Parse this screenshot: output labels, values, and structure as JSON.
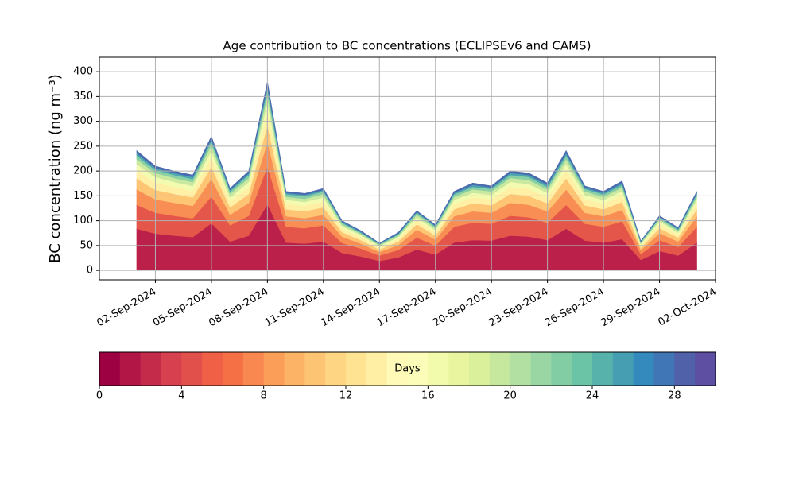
{
  "chart_data": {
    "type": "stacked_area",
    "title": "Age contribution to BC concentrations (ECLIPSEv6 and CAMS)",
    "y_label": "BC concentration (ng m⁻³)",
    "x": [
      "2024-09-01",
      "2024-09-02",
      "2024-09-03",
      "2024-09-04",
      "2024-09-05",
      "2024-09-06",
      "2024-09-07",
      "2024-09-08",
      "2024-09-09",
      "2024-09-10",
      "2024-09-11",
      "2024-09-12",
      "2024-09-13",
      "2024-09-14",
      "2024-09-15",
      "2024-09-16",
      "2024-09-17",
      "2024-09-18",
      "2024-09-19",
      "2024-09-20",
      "2024-09-21",
      "2024-09-22",
      "2024-09-23",
      "2024-09-24",
      "2024-09-25",
      "2024-09-26",
      "2024-09-27",
      "2024-09-28",
      "2024-09-29",
      "2024-09-30",
      "2024-10-01"
    ],
    "series": [
      {
        "color": "#ba2049",
        "values": [
          84,
          74,
          70,
          67,
          95,
          58,
          70,
          133,
          56,
          54,
          58,
          35,
          28,
          19,
          26,
          42,
          32,
          56,
          61,
          60,
          70,
          68,
          61,
          84,
          60,
          56,
          63,
          21,
          39,
          30,
          56
        ]
      },
      {
        "color": "#e4564a",
        "values": [
          48,
          42,
          40,
          38,
          54,
          33,
          40,
          76,
          32,
          31,
          33,
          20,
          16,
          11,
          15,
          24,
          18,
          32,
          35,
          34,
          40,
          39,
          35,
          48,
          34,
          32,
          36,
          12,
          22,
          17,
          32
        ]
      },
      {
        "color": "#f88e53",
        "values": [
          31,
          27,
          26,
          25,
          35,
          21,
          26,
          49,
          21,
          20,
          21,
          13,
          10,
          7,
          10,
          16,
          12,
          21,
          23,
          22,
          26,
          25,
          23,
          31,
          22,
          21,
          23,
          8,
          14,
          11,
          21
        ]
      },
      {
        "color": "#fdc574",
        "values": [
          22,
          19,
          18,
          17,
          24,
          15,
          18,
          34,
          14,
          14,
          15,
          9,
          7,
          5,
          7,
          11,
          8,
          14,
          16,
          15,
          18,
          18,
          16,
          22,
          15,
          14,
          16,
          5,
          10,
          8,
          14
        ]
      },
      {
        "color": "#fff0a5",
        "values": [
          17,
          15,
          14,
          13,
          19,
          12,
          14,
          27,
          11,
          11,
          12,
          7,
          6,
          4,
          5,
          8,
          6,
          11,
          12,
          12,
          14,
          14,
          12,
          17,
          12,
          11,
          13,
          4,
          8,
          6,
          11
        ]
      },
      {
        "color": "#f3fbb0",
        "values": [
          12,
          11,
          10,
          10,
          14,
          8,
          10,
          19,
          8,
          8,
          8,
          5,
          4,
          3,
          4,
          6,
          5,
          8,
          9,
          9,
          10,
          10,
          9,
          12,
          9,
          8,
          9,
          3,
          6,
          4,
          8
        ]
      },
      {
        "color": "#c9e9a0",
        "values": [
          10,
          8,
          8,
          8,
          11,
          7,
          8,
          15,
          6,
          6,
          7,
          4,
          3,
          2,
          3,
          5,
          4,
          6,
          7,
          7,
          8,
          8,
          7,
          10,
          7,
          6,
          7,
          2,
          4,
          3,
          6
        ]
      },
      {
        "color": "#89d0a4",
        "values": [
          7,
          6,
          6,
          6,
          8,
          5,
          6,
          11,
          5,
          5,
          5,
          3,
          2,
          2,
          2,
          4,
          3,
          5,
          5,
          5,
          6,
          6,
          5,
          7,
          5,
          5,
          5,
          2,
          3,
          3,
          5
        ]
      },
      {
        "color": "#4ca5b1",
        "values": [
          5,
          4,
          4,
          4,
          5,
          3,
          4,
          8,
          3,
          3,
          3,
          2,
          2,
          1,
          2,
          2,
          2,
          3,
          4,
          3,
          4,
          4,
          4,
          5,
          3,
          3,
          4,
          1,
          2,
          2,
          3
        ]
      },
      {
        "color": "#4b6baf",
        "values": [
          5,
          4,
          4,
          4,
          5,
          3,
          4,
          8,
          3,
          3,
          3,
          2,
          2,
          1,
          2,
          2,
          2,
          3,
          4,
          3,
          4,
          4,
          4,
          5,
          3,
          3,
          4,
          1,
          2,
          2,
          3
        ]
      }
    ],
    "xlim": [
      "2024-08-30",
      "2024-10-02"
    ],
    "xticks": [
      {
        "value": "2024-09-02",
        "label": "02-Sep-2024"
      },
      {
        "value": "2024-09-05",
        "label": "05-Sep-2024"
      },
      {
        "value": "2024-09-08",
        "label": "08-Sep-2024"
      },
      {
        "value": "2024-09-11",
        "label": "11-Sep-2024"
      },
      {
        "value": "2024-09-14",
        "label": "14-Sep-2024"
      },
      {
        "value": "2024-09-17",
        "label": "17-Sep-2024"
      },
      {
        "value": "2024-09-20",
        "label": "20-Sep-2024"
      },
      {
        "value": "2024-09-23",
        "label": "23-Sep-2024"
      },
      {
        "value": "2024-09-26",
        "label": "26-Sep-2024"
      },
      {
        "value": "2024-09-29",
        "label": "29-Sep-2024"
      },
      {
        "value": "2024-10-02",
        "label": "02-Oct-2024"
      }
    ],
    "ylim": [
      -19,
      429
    ],
    "yticks": [
      0,
      50,
      100,
      150,
      200,
      250,
      300,
      350,
      400
    ],
    "grid": true,
    "colorbar": {
      "label": "Days",
      "lim": [
        0,
        30
      ],
      "ticks": [
        0,
        4,
        8,
        12,
        16,
        20,
        24,
        28
      ],
      "colors": [
        "#9e0142",
        "#b11646",
        "#c42b4b",
        "#d6404f",
        "#e1504a",
        "#f06046",
        "#f57145",
        "#f8884f",
        "#fb9f58",
        "#fdb365",
        "#fdc474",
        "#fed683",
        "#fee492",
        "#feefa4",
        "#fffab7",
        "#fbfdb8",
        "#f2faab",
        "#eaf69f",
        "#daf09a",
        "#c6e89e",
        "#b2e0a2",
        "#9ad6a4",
        "#83cda4",
        "#6bc4a5",
        "#58b2ac",
        "#469eb2",
        "#348abc",
        "#4076b5",
        "#5061aa",
        "#5e4fa2"
      ]
    }
  }
}
